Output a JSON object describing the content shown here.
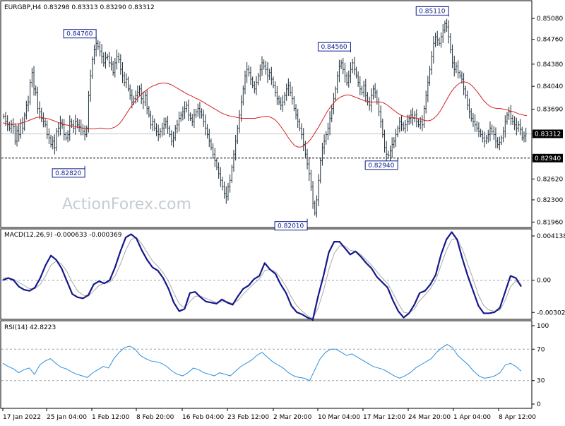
{
  "watermark": "ActionForex.com",
  "chart_data": [
    {
      "type": "candlestick",
      "title": "EURGBP,H4  0.83298 0.83313 0.83290 0.83312",
      "ylim": [
        0.8192,
        0.8519
      ],
      "y_ticks": [
        0.8508,
        0.8476,
        0.8438,
        0.8404,
        0.8369,
        0.8331,
        0.8294,
        0.8262,
        0.823,
        0.8196
      ],
      "y_tick_labels": [
        "0.85080",
        "0.84760",
        "0.84380",
        "0.84040",
        "0.83690",
        "0.83312",
        "0.82940",
        "0.82620",
        "0.82300",
        "0.81960"
      ],
      "current_price": {
        "value": 0.83312,
        "label": "0.83312"
      },
      "support_level": {
        "value": 0.8294,
        "label": "0.82940"
      },
      "annotations": [
        {
          "label": "0.84760",
          "value": 0.8476,
          "bar": 49
        },
        {
          "label": "0.82820",
          "value": 0.8282,
          "bar": 43
        },
        {
          "label": "0.82010",
          "value": 0.8201,
          "bar": 161
        },
        {
          "label": "0.84560",
          "value": 0.8456,
          "bar": 184
        },
        {
          "label": "0.82940",
          "value": 0.8294,
          "bar": 209
        },
        {
          "label": "0.85110",
          "value": 0.8511,
          "bar": 236
        }
      ],
      "series": [
        {
          "name": "",
          "values": [
            0.8358,
            0.835,
            0.8345,
            0.834,
            0.8345,
            0.8342,
            0.832,
            0.8336,
            0.833,
            0.8348,
            0.834,
            0.836,
            0.8375,
            0.838,
            0.841,
            0.8425,
            0.84,
            0.8395,
            0.837,
            0.8365,
            0.8355,
            0.835,
            0.8345,
            0.833,
            0.8325,
            0.8315,
            0.832,
            0.831,
            0.8335,
            0.834,
            0.8348,
            0.8345,
            0.833,
            0.8325,
            0.833,
            0.835,
            0.8345,
            0.834,
            0.835,
            0.8345,
            0.8342,
            0.834,
            0.8335,
            0.833,
            0.834,
            0.839,
            0.842,
            0.8445,
            0.846,
            0.847,
            0.8465,
            0.8458,
            0.845,
            0.844,
            0.8448,
            0.845,
            0.844,
            0.8438,
            0.8425,
            0.844,
            0.845,
            0.8445,
            0.843,
            0.842,
            0.841,
            0.8415,
            0.84,
            0.839,
            0.838,
            0.8385,
            0.839,
            0.8395,
            0.84,
            0.8385,
            0.838,
            0.839,
            0.837,
            0.836,
            0.8345,
            0.835,
            0.834,
            0.8335,
            0.833,
            0.8335,
            0.834,
            0.8345,
            0.835,
            0.834,
            0.833,
            0.832,
            0.8325,
            0.834,
            0.8345,
            0.8355,
            0.836,
            0.8365,
            0.837,
            0.8375,
            0.836,
            0.8355,
            0.835,
            0.836,
            0.8365,
            0.837,
            0.8365,
            0.836,
            0.835,
            0.834,
            0.833,
            0.832,
            0.831,
            0.83,
            0.829,
            0.828,
            0.827,
            0.826,
            0.825,
            0.824,
            0.8235,
            0.825,
            0.826,
            0.828,
            0.83,
            0.832,
            0.834,
            0.836,
            0.838,
            0.84,
            0.842,
            0.843,
            0.8425,
            0.8415,
            0.8405,
            0.84,
            0.841,
            0.842,
            0.843,
            0.844,
            0.8435,
            0.843,
            0.842,
            0.8425,
            0.8415,
            0.8405,
            0.8395,
            0.8385,
            0.838,
            0.8375,
            0.838,
            0.839,
            0.84,
            0.8405,
            0.8395,
            0.8385,
            0.837,
            0.836,
            0.835,
            0.834,
            0.833,
            0.8315,
            0.83,
            0.8285,
            0.827,
            0.825,
            0.8225,
            0.821,
            0.823,
            0.826,
            0.829,
            0.831,
            0.832,
            0.833,
            0.834,
            0.8355,
            0.837,
            0.8385,
            0.84,
            0.842,
            0.8435,
            0.844,
            0.843,
            0.842,
            0.841,
            0.842,
            0.843,
            0.844,
            0.843,
            0.842,
            0.841,
            0.84,
            0.8395,
            0.8405,
            0.839,
            0.838,
            0.8375,
            0.839,
            0.84,
            0.8395,
            0.838,
            0.8365,
            0.835,
            0.833,
            0.831,
            0.83,
            0.8298,
            0.8305,
            0.8315,
            0.832,
            0.833,
            0.834,
            0.835,
            0.8345,
            0.834,
            0.8345,
            0.835,
            0.8355,
            0.836,
            0.8355,
            0.836,
            0.835,
            0.8345,
            0.835,
            0.8345,
            0.837,
            0.839,
            0.841,
            0.843,
            0.845,
            0.847,
            0.848,
            0.8475,
            0.847,
            0.848,
            0.849,
            0.85,
            0.8495,
            0.848,
            0.846,
            0.844,
            0.843,
            0.8435,
            0.8425,
            0.842,
            0.8415,
            0.84,
            0.839,
            0.8375,
            0.8365,
            0.8355,
            0.835,
            0.8345,
            0.834,
            0.8335,
            0.833,
            0.8325,
            0.832,
            0.8325,
            0.833,
            0.834,
            0.8335,
            0.833,
            0.832,
            0.8315,
            0.8318,
            0.8325,
            0.8335,
            0.835,
            0.836,
            0.8365,
            0.8355,
            0.835,
            0.8345,
            0.834,
            0.8345,
            0.8338,
            0.8325,
            0.8328,
            0.8331
          ]
        },
        {
          "name": "",
          "values": [
            0.8348,
            0.8347,
            0.8346,
            0.8346,
            0.8346,
            0.8347,
            0.8348,
            0.835,
            0.8352,
            0.8354,
            0.8356,
            0.8357,
            0.8356,
            0.8355,
            0.8354,
            0.8352,
            0.835,
            0.8348,
            0.8346,
            0.8345,
            0.8344,
            0.8343,
            0.8342,
            0.8341,
            0.834,
            0.8339,
            0.8339,
            0.8339,
            0.8339,
            0.834,
            0.834,
            0.8339,
            0.8339,
            0.834,
            0.8342,
            0.8346,
            0.8352,
            0.836,
            0.8368,
            0.8375,
            0.8382,
            0.8388,
            0.8393,
            0.8397,
            0.8401,
            0.8404,
            0.8406,
            0.8408,
            0.8409,
            0.8409,
            0.8408,
            0.8406,
            0.8403,
            0.84,
            0.8397,
            0.8394,
            0.8391,
            0.8389,
            0.8386,
            0.8384,
            0.8381,
            0.8378,
            0.8375,
            0.8372,
            0.8369,
            0.8366,
            0.8363,
            0.8361,
            0.8359,
            0.8358,
            0.8357,
            0.8356,
            0.8355,
            0.8355,
            0.8355,
            0.8355,
            0.8355,
            0.8356,
            0.8357,
            0.8358,
            0.8358,
            0.8356,
            0.8353,
            0.8348,
            0.8341,
            0.8334,
            0.8326,
            0.8319,
            0.8313,
            0.8311,
            0.8311,
            0.8314,
            0.8318,
            0.8324,
            0.8332,
            0.834,
            0.8349,
            0.8358,
            0.8367,
            0.8374,
            0.838,
            0.8385,
            0.8388,
            0.839,
            0.8391,
            0.839,
            0.8388,
            0.8386,
            0.8384,
            0.8382,
            0.8381,
            0.838,
            0.838,
            0.838,
            0.838,
            0.8378,
            0.8375,
            0.8371,
            0.8367,
            0.8363,
            0.836,
            0.8358,
            0.8357,
            0.8356,
            0.8356,
            0.8355,
            0.8354,
            0.8352,
            0.8351,
            0.8352,
            0.8355,
            0.836,
            0.8367,
            0.8376,
            0.8385,
            0.8394,
            0.8401,
            0.8406,
            0.841,
            0.8411,
            0.841,
            0.8407,
            0.8402,
            0.8396,
            0.8389,
            0.8382,
            0.8377,
            0.8373,
            0.8371,
            0.837,
            0.837,
            0.8369,
            0.8368,
            0.8366,
            0.8365,
            0.8363,
            0.8361,
            0.836,
            0.8359
          ]
        }
      ]
    },
    {
      "type": "line",
      "title": "MACD(12,26,9) -0.000633 -0.000369",
      "ylim": [
        -0.0034,
        0.0044
      ],
      "y_ticks": [
        0.004138,
        0.0,
        -0.00302
      ],
      "y_tick_labels": [
        "0.004138",
        "0.00",
        "-0.00302"
      ],
      "series": [
        {
          "name": "",
          "values": [
            0.0,
            0.0002,
            0.0,
            -0.0006,
            -0.0009,
            -0.001,
            -0.0007,
            0.0002,
            0.0014,
            0.0023,
            0.0019,
            0.0011,
            -0.0001,
            -0.0013,
            -0.0016,
            -0.0017,
            -0.0014,
            -0.0004,
            -0.0001,
            -0.0003,
            0.0,
            0.0012,
            0.0027,
            0.004,
            0.0043,
            0.0039,
            0.0028,
            0.0019,
            0.0012,
            0.0009,
            0.0002,
            -0.0008,
            -0.0021,
            -0.0029,
            -0.0027,
            -0.0012,
            -0.0011,
            -0.0016,
            -0.002,
            -0.0021,
            -0.0022,
            -0.0018,
            -0.0021,
            -0.0023,
            -0.0015,
            -0.0008,
            -0.0005,
            0.0001,
            0.0004,
            0.0016,
            0.001,
            0.0006,
            -0.0004,
            -0.0012,
            -0.0024,
            -0.003,
            -0.0032,
            -0.0035,
            -0.0037,
            -0.0015,
            0.0004,
            0.0026,
            0.0036,
            0.0036,
            0.003,
            0.0024,
            0.0027,
            0.0022,
            0.0016,
            0.0011,
            0.0003,
            -0.0002,
            -0.0007,
            -0.0019,
            -0.0029,
            -0.0035,
            -0.0031,
            -0.0023,
            -0.0012,
            -0.001,
            -0.0004,
            0.0005,
            0.0024,
            0.0038,
            0.0045,
            0.0038,
            0.002,
            0.0004,
            -0.001,
            -0.0024,
            -0.0031,
            -0.0031,
            -0.003,
            -0.0026,
            -0.0011,
            0.0004,
            0.0002,
            -0.0006
          ]
        },
        {
          "name": "",
          "values": [
            0.0002,
            0.0002,
            0.0001,
            -0.0002,
            -0.0005,
            -0.0008,
            -0.0008,
            -0.0004,
            0.0004,
            0.0014,
            0.0018,
            0.0015,
            0.0008,
            -0.0002,
            -0.001,
            -0.0014,
            -0.0015,
            -0.001,
            -0.0005,
            -0.0003,
            -0.0002,
            0.0004,
            0.0015,
            0.0028,
            0.0038,
            0.004,
            0.0034,
            0.0026,
            0.0018,
            0.0013,
            0.0007,
            -0.0001,
            -0.0012,
            -0.0022,
            -0.0026,
            -0.002,
            -0.0015,
            -0.0015,
            -0.0017,
            -0.0019,
            -0.0021,
            -0.002,
            -0.002,
            -0.0022,
            -0.0019,
            -0.0013,
            -0.0008,
            -0.0003,
            0.0001,
            0.0009,
            0.001,
            0.0008,
            0.0002,
            -0.0006,
            -0.0016,
            -0.0024,
            -0.0029,
            -0.0033,
            -0.0036,
            -0.0026,
            -0.001,
            0.001,
            0.0025,
            0.0032,
            0.0032,
            0.0028,
            0.0027,
            0.0024,
            0.0019,
            0.0014,
            0.0008,
            0.0002,
            -0.0003,
            -0.0012,
            -0.0022,
            -0.003,
            -0.0031,
            -0.0027,
            -0.0019,
            -0.0014,
            -0.0008,
            0.0,
            0.0014,
            0.0028,
            0.0038,
            0.0039,
            0.0029,
            0.0015,
            0.0001,
            -0.0014,
            -0.0024,
            -0.0028,
            -0.0029,
            -0.0028,
            -0.0019,
            -0.0006,
            -0.0001,
            -0.0004
          ]
        }
      ]
    },
    {
      "type": "line",
      "title": "RSI(14) 42.8223",
      "ylim": [
        0,
        100
      ],
      "y_ticks": [
        100,
        70,
        30,
        0
      ],
      "y_tick_labels": [
        "100",
        "70",
        "30",
        "0"
      ],
      "series": [
        {
          "name": "",
          "values": [
            52,
            48,
            45,
            40,
            44,
            46,
            38,
            50,
            55,
            58,
            52,
            47,
            45,
            41,
            38,
            36,
            34,
            40,
            44,
            48,
            46,
            58,
            66,
            72,
            74,
            70,
            62,
            58,
            55,
            54,
            52,
            48,
            42,
            38,
            36,
            40,
            46,
            44,
            40,
            38,
            36,
            40,
            38,
            36,
            42,
            48,
            52,
            56,
            62,
            66,
            60,
            54,
            50,
            46,
            40,
            36,
            34,
            33,
            30,
            44,
            58,
            66,
            70,
            70,
            66,
            62,
            64,
            60,
            56,
            52,
            48,
            46,
            44,
            40,
            36,
            33,
            36,
            40,
            46,
            50,
            54,
            58,
            66,
            72,
            76,
            72,
            62,
            56,
            50,
            42,
            36,
            33,
            34,
            36,
            40,
            50,
            52,
            48,
            42
          ]
        }
      ]
    }
  ],
  "x_axis": {
    "tick_labels": [
      "17 Jan 2022",
      "25 Jan 04:00",
      "1 Feb 12:00",
      "8 Feb 20:00",
      "16 Feb 04:00",
      "23 Feb 12:00",
      "2 Mar 20:00",
      "10 Mar 04:00",
      "17 Mar 12:00",
      "24 Mar 20:00",
      "1 Apr 04:00",
      "8 Apr 12:00"
    ]
  }
}
